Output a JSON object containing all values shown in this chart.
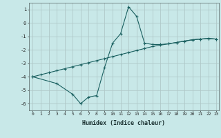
{
  "xlabel": "Humidex (Indice chaleur)",
  "ylabel": "",
  "background_color": "#c8e8e8",
  "grid_color": "#b0c8c8",
  "line_color": "#1a6060",
  "xlim": [
    -0.5,
    23.3
  ],
  "ylim": [
    -6.5,
    1.5
  ],
  "yticks": [
    1,
    0,
    -1,
    -2,
    -3,
    -4,
    -5,
    -6
  ],
  "xticks": [
    0,
    1,
    2,
    3,
    4,
    5,
    6,
    7,
    8,
    9,
    10,
    11,
    12,
    13,
    14,
    15,
    16,
    17,
    18,
    19,
    20,
    21,
    22,
    23
  ],
  "line1_x": [
    0,
    1,
    2,
    3,
    4,
    5,
    6,
    7,
    8,
    9,
    10,
    11,
    12,
    13,
    14,
    15,
    16,
    17,
    18,
    19,
    20,
    21,
    22,
    23
  ],
  "line1_y": [
    -4.0,
    -3.85,
    -3.7,
    -3.55,
    -3.4,
    -3.25,
    -3.1,
    -2.95,
    -2.8,
    -2.65,
    -2.5,
    -2.35,
    -2.2,
    -2.05,
    -1.9,
    -1.75,
    -1.65,
    -1.55,
    -1.45,
    -1.35,
    -1.25,
    -1.2,
    -1.15,
    -1.2
  ],
  "line2_x": [
    0,
    3,
    5,
    6,
    7,
    8,
    9,
    10,
    11,
    12,
    13,
    14,
    15,
    16,
    17,
    18,
    19,
    20,
    21,
    22,
    23
  ],
  "line2_y": [
    -4.0,
    -4.5,
    -5.3,
    -6.0,
    -5.5,
    -5.4,
    -3.3,
    -1.5,
    -0.8,
    1.2,
    0.5,
    -1.5,
    -1.6,
    -1.6,
    -1.55,
    -1.45,
    -1.35,
    -1.25,
    -1.2,
    -1.15,
    -1.2
  ]
}
